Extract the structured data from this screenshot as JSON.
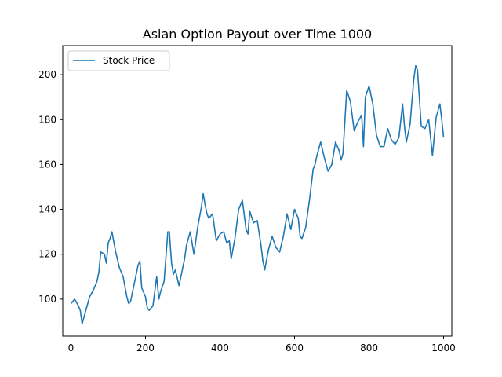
{
  "chart_data": {
    "type": "line",
    "title": "Asian Option Payout over Time 1000",
    "xlabel": "",
    "ylabel": "",
    "xlim": [
      -22,
      1022
    ],
    "ylim": [
      83.5,
      213
    ],
    "x_ticks": [
      0,
      200,
      400,
      600,
      800,
      1000
    ],
    "y_ticks": [
      100,
      120,
      140,
      160,
      180,
      200
    ],
    "grid": false,
    "legend": "top-left",
    "series": [
      {
        "name": "Stock Price",
        "color": "#1f77b4",
        "x": [
          0,
          10,
          20,
          25,
          30,
          40,
          50,
          60,
          70,
          75,
          80,
          90,
          95,
          100,
          105,
          110,
          120,
          130,
          140,
          150,
          155,
          160,
          170,
          180,
          185,
          190,
          200,
          205,
          210,
          220,
          230,
          236,
          240,
          250,
          260,
          264,
          270,
          275,
          280,
          290,
          300,
          305,
          310,
          320,
          330,
          340,
          350,
          355,
          360,
          365,
          370,
          380,
          390,
          400,
          410,
          418,
          425,
          430,
          440,
          450,
          460,
          470,
          475,
          480,
          490,
          500,
          510,
          515,
          520,
          530,
          540,
          550,
          560,
          570,
          580,
          590,
          600,
          610,
          615,
          620,
          630,
          640,
          650,
          655,
          660,
          670,
          680,
          690,
          700,
          710,
          720,
          725,
          730,
          740,
          750,
          760,
          770,
          780,
          785,
          790,
          800,
          810,
          820,
          830,
          840,
          850,
          860,
          870,
          880,
          890,
          895,
          900,
          910,
          920,
          925,
          930,
          940,
          950,
          960,
          970,
          980,
          990,
          995,
          1000
        ],
        "values": [
          98,
          100,
          97,
          95,
          89,
          95,
          101,
          104,
          108,
          112,
          121,
          120,
          116,
          125,
          127,
          130,
          121,
          114,
          110,
          101,
          98,
          99,
          107,
          115,
          117,
          105,
          101,
          96,
          95,
          97,
          110,
          100,
          103,
          108,
          130,
          130,
          116,
          111,
          113,
          106,
          114,
          118,
          124,
          130,
          120,
          132,
          141,
          147,
          142,
          138,
          136,
          138,
          126,
          129,
          130,
          125,
          126,
          118,
          127,
          140,
          144,
          131,
          129,
          139,
          134,
          135,
          124,
          117,
          113,
          122,
          128,
          123,
          121,
          128,
          138,
          131,
          140,
          136,
          128,
          127,
          132,
          144,
          158,
          160,
          164,
          170,
          163,
          157,
          160,
          170,
          166,
          162,
          165,
          193,
          188,
          175,
          179,
          182,
          168,
          190,
          195,
          187,
          173,
          168,
          168,
          176,
          171,
          169,
          172,
          187,
          177,
          170,
          178,
          198,
          204,
          202,
          177,
          176,
          180,
          164,
          181,
          187,
          180,
          172
        ]
      }
    ]
  }
}
